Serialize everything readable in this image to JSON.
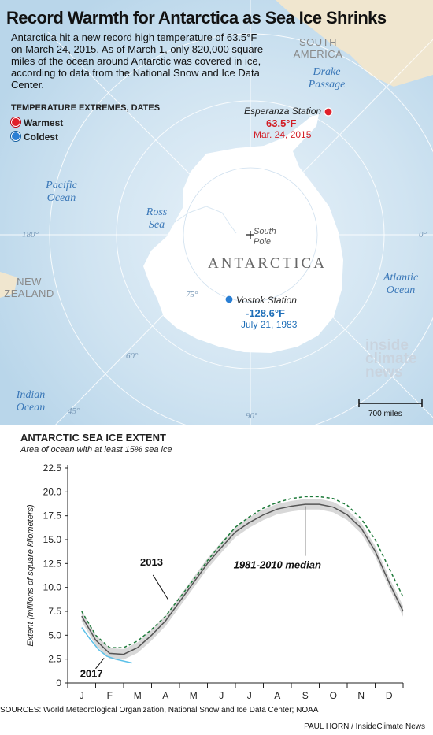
{
  "header": {
    "title": "Record Warmth for Antarctica as Sea Ice Shrinks",
    "intro": "Antarctica hit a new record high temperature of 63.5°F on March 24, 2015. As of March 1, only 820,000 square miles of the ocean around Antarctic was covered in ice, according to data from the National Snow and Ice Data Center."
  },
  "legend": {
    "title": "TEMPERATURE EXTREMES, DATES",
    "warmest": "Warmest",
    "coldest": "Coldest",
    "warm_color": "#e0202a",
    "cold_color": "#2a7fd4"
  },
  "map": {
    "oceans": {
      "pacific": "Pacific Ocean",
      "atlantic": "Atlantic Ocean",
      "indian": "Indian Ocean",
      "ross": "Ross Sea",
      "drake": "Drake Passage"
    },
    "land": {
      "south_america": "SOUTH AMERICA",
      "new_zealand": "NEW ZEALAND",
      "antarctica": "ANTARCTICA",
      "south_pole": "South Pole"
    },
    "degrees": {
      "d180": "180°",
      "d0": "0°",
      "d90": "90°",
      "d75": "75°",
      "d60": "60°",
      "d45": "45°"
    },
    "warm_station": {
      "name": "Esperanza Station",
      "temp": "63.5°F",
      "date": "Mar. 24, 2015"
    },
    "cold_station": {
      "name": "Vostok Station",
      "temp": "-128.6°F",
      "date": "July 21, 1983"
    },
    "scale_label": "700 miles",
    "logo": "inside climate news",
    "ocean_color": "#cfe3f1",
    "ice_color": "#ffffff",
    "land_color": "#f0e6cf"
  },
  "chart_data": {
    "type": "line",
    "title": "ANTARCTIC SEA ICE EXTENT",
    "subtitle": "Area of ocean with at least 15% sea ice",
    "ylabel": "Extent (millions of square kilometers)",
    "xlabel": "",
    "ylim": [
      0,
      22.5
    ],
    "yticks": [
      "0",
      "2.5",
      "5.0",
      "7.5",
      "10.0",
      "12.5",
      "15.0",
      "17.5",
      "20.0",
      "22.5"
    ],
    "categories": [
      "J",
      "F",
      "M",
      "A",
      "M",
      "J",
      "J",
      "A",
      "S",
      "O",
      "N",
      "D"
    ],
    "series": [
      {
        "name": "1981-2010 median",
        "style": "band",
        "color": "#555555",
        "x": [
          0.0,
          0.5,
          1.0,
          1.5,
          2.0,
          2.5,
          3.0,
          3.5,
          4.0,
          4.5,
          5.0,
          5.5,
          6.0,
          6.5,
          7.0,
          7.5,
          8.0,
          8.5,
          9.0,
          9.5,
          10.0,
          10.5,
          11.0,
          11.5
        ],
        "values": [
          7.0,
          4.5,
          3.1,
          3.0,
          3.7,
          5.0,
          6.5,
          8.5,
          10.5,
          12.5,
          14.2,
          15.8,
          16.8,
          17.6,
          18.2,
          18.5,
          18.7,
          18.7,
          18.4,
          17.6,
          16.2,
          13.8,
          10.5,
          7.5
        ]
      },
      {
        "name": "2013",
        "style": "dashed",
        "color": "#1e7a3a",
        "x": [
          0.0,
          0.5,
          1.0,
          1.5,
          2.0,
          2.5,
          3.0,
          3.5,
          4.0,
          4.5,
          5.0,
          5.5,
          6.0,
          6.5,
          7.0,
          7.5,
          8.0,
          8.5,
          9.0,
          9.5,
          10.0,
          10.5,
          11.0,
          11.5
        ],
        "values": [
          7.5,
          5.0,
          3.7,
          3.7,
          4.4,
          5.6,
          7.0,
          8.9,
          10.8,
          12.8,
          14.6,
          16.3,
          17.4,
          18.3,
          18.9,
          19.3,
          19.5,
          19.5,
          19.3,
          18.6,
          17.2,
          15.0,
          12.0,
          9.0
        ]
      },
      {
        "name": "2017",
        "style": "solid",
        "color": "#5bc0e8",
        "x": [
          0.0,
          0.3,
          0.6,
          0.9,
          1.2,
          1.5,
          1.8
        ],
        "values": [
          5.8,
          4.6,
          3.5,
          2.8,
          2.5,
          2.3,
          2.1
        ]
      }
    ],
    "annotations": [
      "2013",
      "2017",
      "1981-2010 median"
    ],
    "grid": false
  },
  "footer": {
    "sources": "SOURCES: World Meteorological Organization, National Snow and Ice Data Center; NOAA",
    "credit": "PAUL HORN / InsideClimate News"
  }
}
